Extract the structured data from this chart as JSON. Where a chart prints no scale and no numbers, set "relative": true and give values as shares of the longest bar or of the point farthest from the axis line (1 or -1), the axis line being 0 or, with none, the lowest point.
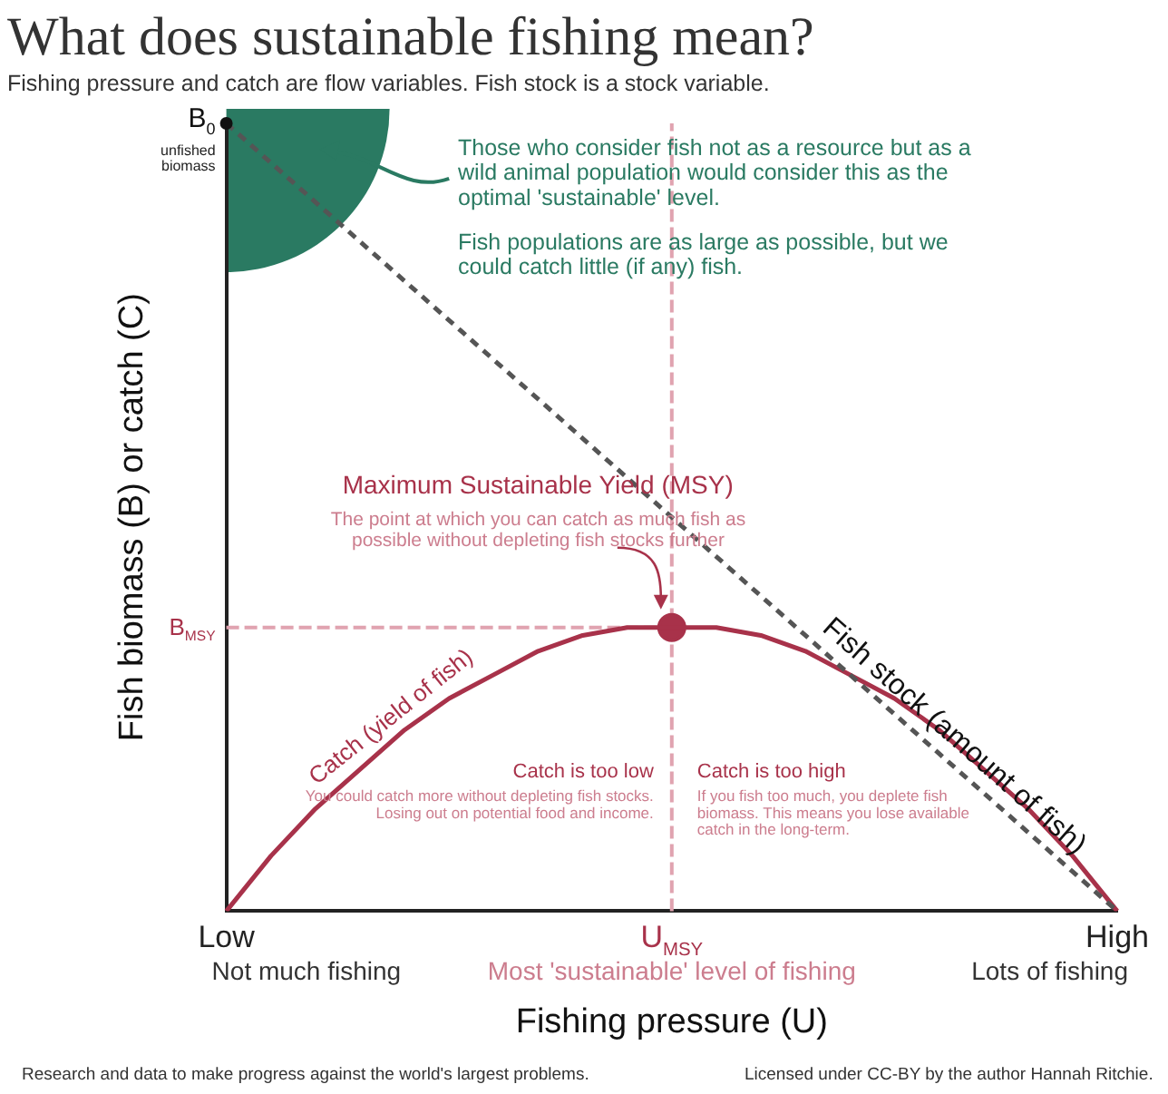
{
  "chart_data": {
    "type": "line",
    "title": "What does sustainable fishing mean?",
    "subtitle": "Fishing pressure and catch are flow variables. Fish stock is a stock variable.",
    "xlabel": "Fishing pressure (U)",
    "ylabel": "Fish biomass (B) or catch (C)",
    "relative": true,
    "grid": false,
    "legend": false,
    "marker": "none",
    "categories": [
      "Low",
      null,
      null,
      null,
      null,
      null,
      null,
      null,
      null,
      null,
      "U$_{MSY}$",
      null,
      null,
      null,
      null,
      null,
      null,
      null,
      null,
      null,
      "High"
    ],
    "series": [
      {
        "name": "Fish stock (amount of fish)",
        "color": "#555555",
        "line_style": "dashed",
        "values": [
          1,
          0.95,
          0.9,
          0.85,
          0.8,
          0.75,
          0.7,
          0.65,
          0.6,
          0.55,
          0.5,
          0.45,
          0.4,
          0.35,
          0.3,
          0.25,
          0.2,
          0.15,
          0.1,
          0.05,
          0
        ]
      },
      {
        "name": "Catch (yield of fish)",
        "color": "#a8324a",
        "line_style": "solid",
        "values": [
          0,
          0.07,
          0.13,
          0.18,
          0.23,
          0.27,
          0.3,
          0.33,
          0.35,
          0.36,
          0.36,
          0.36,
          0.35,
          0.33,
          0.3,
          0.27,
          0.23,
          0.18,
          0.13,
          0.07,
          0
        ]
      },
      {
        "type": "scatter",
        "color": "#a8324a",
        "marker": "circle",
        "x": [
          "U$_{MSY}$"
        ],
        "values": [
          0.36
        ]
      }
    ],
    "ref_lines": [
      {
        "axis": "y",
        "value": 0.36,
        "label": "B$_{MSY}$",
        "color": "#e0a3b0",
        "line_style": "dashed"
      },
      {
        "axis": "x",
        "value": "U$_{MSY}$",
        "color": "#e0a3b0",
        "line_style": "dashed"
      }
    ],
    "annotations": [
      "Those who consider fish not as a resource but as a wild animal population would consider this as the optimal 'sustainable' level.",
      "Fish populations are as large as possible, but we could catch little (if any) fish.",
      "Maximum Sustainable Yield (MSY)",
      "The point at which you can catch as much fish as possible without depleting fish stocks further",
      "Catch is too low",
      "You could catch more without depleting fish stocks. Losing out on potential food and income.",
      "Catch is too high",
      "If you fish too much, you deplete fish biomass. This means you lose available catch in the long-term.",
      "B$_{0}$",
      "unfished biomass",
      "Not much fishing",
      "Most 'sustainable' level of fishing",
      "Lots of fishing",
      "Research and data to make progress against the world's largest problems.",
      "Licensed under CC-BY by the author Hannah Ritchie."
    ]
  }
}
